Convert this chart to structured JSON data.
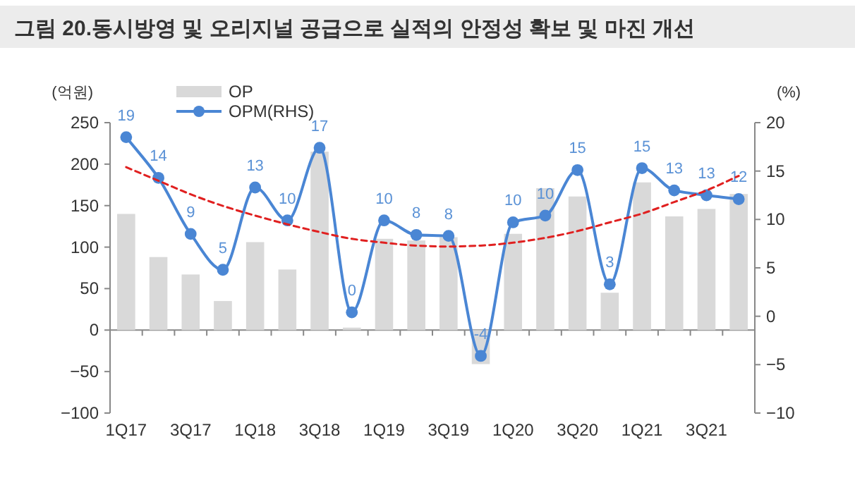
{
  "chart_data": {
    "type": "bar",
    "title": "그림 20.동시방영 및 오리지널 공급으로 실적의 안정성 확보 및 마진 개선",
    "ylabel": "(억원)",
    "y2label": "(%)",
    "categories": [
      "1Q17",
      null,
      "3Q17",
      null,
      "1Q18",
      null,
      "3Q18",
      null,
      "1Q19",
      null,
      "3Q19",
      null,
      "1Q20",
      null,
      "3Q20",
      null,
      "1Q21",
      null,
      "3Q21",
      null
    ],
    "series": [
      {
        "name": "OP",
        "color": "#d9d9d9",
        "values": [
          140,
          88,
          67,
          35,
          106,
          73,
          215,
          3,
          110,
          108,
          112,
          -41,
          116,
          171,
          161,
          45,
          178,
          137,
          146,
          164
        ]
      },
      {
        "name": "OPM(RHS)",
        "type": "line",
        "axis": "y2",
        "color": "#4a86d4",
        "marker": "circle",
        "line_style": "solid",
        "values": [
          18.5,
          14.3,
          8.5,
          4.8,
          13.3,
          9.9,
          17.4,
          0.4,
          9.9,
          8.4,
          8.3,
          -4.1,
          9.7,
          10.4,
          15.1,
          3.3,
          15.3,
          13.0,
          12.5,
          12.1
        ],
        "value_labels": [
          "19",
          "14",
          "9",
          "5",
          "13",
          "10",
          "17",
          "0",
          "10",
          "8",
          "8",
          "-4",
          "10",
          "10",
          "15",
          "3",
          "15",
          "13",
          "13",
          "12"
        ]
      },
      {
        "type": "line",
        "axis": "y2",
        "color": "#e02020",
        "marker": "none",
        "line_style": "dashed",
        "values": [
          15.4,
          14.0,
          12.6,
          11.4,
          10.4,
          9.5,
          8.7,
          8.0,
          7.6,
          7.3,
          7.2,
          7.3,
          7.6,
          8.1,
          8.8,
          9.7,
          10.6,
          11.8,
          13.0,
          14.5
        ]
      }
    ],
    "ylim": [
      -100,
      250
    ],
    "yticks": [
      -100,
      -50,
      0,
      50,
      100,
      150,
      200,
      250
    ],
    "y2lim": [
      -10,
      20
    ],
    "y2ticks": [
      -10,
      -5,
      0,
      5,
      10,
      15,
      20
    ],
    "legend": "top left"
  }
}
